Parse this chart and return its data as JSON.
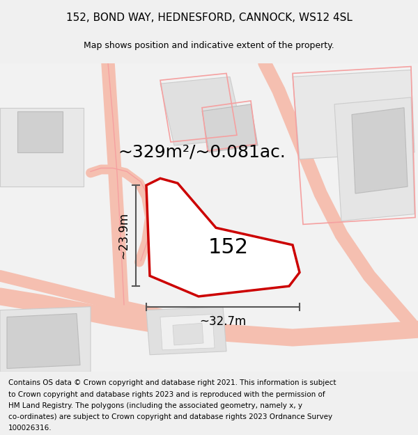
{
  "title": "152, BOND WAY, HEDNESFORD, CANNOCK, WS12 4SL",
  "subtitle": "Map shows position and indicative extent of the property.",
  "area_text": "~329m²/~0.081ac.",
  "label": "152",
  "dim_height": "~23.9m",
  "dim_width": "~32.7m",
  "footer": "Contains OS data © Crown copyright and database right 2021. This information is subject to Crown copyright and database rights 2023 and is reproduced with the permission of HM Land Registry. The polygons (including the associated geometry, namely x, y co-ordinates) are subject to Crown copyright and database rights 2023 Ordnance Survey 100026316.",
  "bg_color": "#f5f5f5",
  "map_bg": "#ffffff",
  "plot_color": "#ff0000",
  "plot_fill": "#ffffff",
  "road_color": "#f0c0b0",
  "building_color": "#dddddd",
  "title_fontsize": 11,
  "subtitle_fontsize": 9,
  "area_fontsize": 18,
  "label_fontsize": 22,
  "dim_fontsize": 12,
  "footer_fontsize": 7.5,
  "map_region": [
    0.0,
    0.08,
    1.0,
    0.82
  ]
}
